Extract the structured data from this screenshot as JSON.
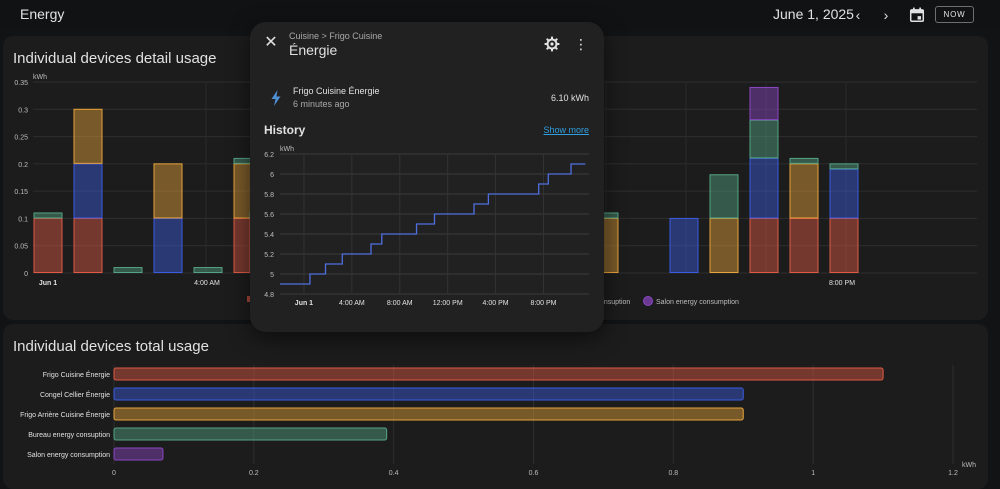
{
  "header": {
    "title": "Energy",
    "date": "June 1, 2025",
    "now_label": "NOW"
  },
  "detail_card": {
    "title": "Individual devices detail usage"
  },
  "total_card": {
    "title": "Individual devices total usage"
  },
  "colors": {
    "frigo": "#e05a45",
    "congel": "#3b5ce0",
    "arriere": "#e8a33a",
    "bureau": "#55a386",
    "salon": "#8b47c5"
  },
  "detail_chart": {
    "type": "bar",
    "ylabel": "kWh",
    "ylim": [
      0,
      0.35
    ],
    "yticks": [
      "0",
      "0.05",
      "0.1",
      "0.15",
      "0.2",
      "0.25",
      "0.3",
      "0.35"
    ],
    "xtick_labels": [
      "Jun 1",
      "4:00 AM",
      "8:00 PM"
    ],
    "legend_items": [
      "...nsuption",
      "Salon energy consumption"
    ],
    "bars": [
      {
        "frigo": 0.1,
        "congel": 0,
        "arriere": 0,
        "bureau": 0.01,
        "salon": 0
      },
      {
        "frigo": 0.1,
        "congel": 0.1,
        "arriere": 0.1,
        "bureau": 0,
        "salon": 0
      },
      {
        "frigo": 0,
        "congel": 0,
        "arriere": 0,
        "bureau": 0.01,
        "salon": 0
      },
      {
        "frigo": 0,
        "congel": 0.1,
        "arriere": 0.1,
        "bureau": 0,
        "salon": 0
      },
      {
        "frigo": 0,
        "congel": 0,
        "arriere": 0,
        "bureau": 0.01,
        "salon": 0
      },
      {
        "frigo": 0.1,
        "congel": 0,
        "arriere": 0.1,
        "bureau": 0.01,
        "salon": 0
      },
      {
        "frigo": 0.1,
        "congel": 0,
        "arriere": 0,
        "bureau": 0.01,
        "salon": 0
      },
      {
        "frigo": 0,
        "congel": 0,
        "arriere": 0.1,
        "bureau": 0.01,
        "salon": 0
      },
      {
        "frigo": 0,
        "congel": 0.1,
        "arriere": 0,
        "bureau": 0,
        "salon": 0
      },
      {
        "frigo": 0,
        "congel": 0,
        "arriere": 0.1,
        "bureau": 0.08,
        "salon": 0
      },
      {
        "frigo": 0.1,
        "congel": 0.11,
        "arriere": 0,
        "bureau": 0.07,
        "salon": 0.06
      },
      {
        "frigo": 0.1,
        "congel": 0,
        "arriere": 0.1,
        "bureau": 0.01,
        "salon": 0
      },
      {
        "frigo": 0.1,
        "congel": 0.09,
        "arriere": 0,
        "bureau": 0.01,
        "salon": 0
      }
    ]
  },
  "total_chart": {
    "type": "bar",
    "xlabel": "kWh",
    "xlim": [
      0,
      1.2
    ],
    "xticks": [
      "0",
      "0.2",
      "0.4",
      "0.6",
      "0.8",
      "1",
      "1.2"
    ],
    "categories": [
      "Frigo Cuisine Énergie",
      "Congel Cellier Énergie",
      "Frigo Arrière Cuisine Énergie",
      "Bureau energy consuption",
      "Salon energy consumption"
    ],
    "values": [
      1.1,
      0.9,
      0.9,
      0.39,
      0.07
    ],
    "color_keys": [
      "frigo",
      "congel",
      "arriere",
      "bureau",
      "salon"
    ]
  },
  "dialog": {
    "breadcrumb": "Cuisine > Frigo Cuisine",
    "title": "Énergie",
    "entity_name": "Frigo Cuisine Énergie",
    "entity_time": "6 minutes ago",
    "entity_value": "6.10 kWh",
    "history_title": "History",
    "show_more": "Show more"
  },
  "chart_data": {
    "type": "line",
    "ylabel": "kWh",
    "ylim": [
      4.8,
      6.2
    ],
    "yticks": [
      "4.8",
      "5",
      "5.2",
      "5.4",
      "5.6",
      "5.8",
      "6",
      "6.2"
    ],
    "xtick_labels": [
      "Jun 1",
      "4:00 AM",
      "8:00 AM",
      "12:00 PM",
      "4:00 PM",
      "8:00 PM"
    ],
    "xtick_hours": [
      0,
      4,
      8,
      12,
      16,
      20
    ],
    "series": [
      {
        "hours": [
          -2,
          -0.1,
          0.5,
          1.0,
          1.8,
          2.5,
          3.2,
          4.5,
          5.6,
          6.5,
          8.4,
          9.4,
          10.3,
          10.9,
          14.2,
          15.4,
          17.1,
          19.6,
          20.4,
          21.6,
          22.3,
          23.5
        ],
        "values": [
          4.9,
          4.9,
          5.0,
          5.0,
          5.1,
          5.1,
          5.2,
          5.2,
          5.3,
          5.4,
          5.4,
          5.5,
          5.5,
          5.6,
          5.7,
          5.8,
          5.8,
          5.9,
          6.0,
          6.0,
          6.1,
          6.1
        ]
      }
    ]
  }
}
